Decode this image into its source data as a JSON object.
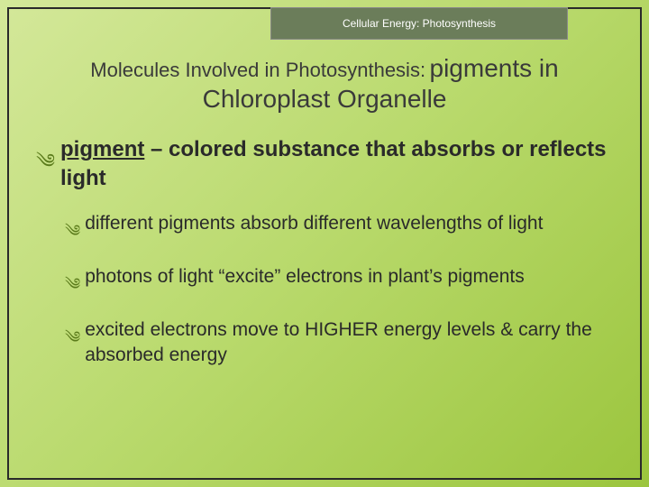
{
  "header": {
    "text": "Cellular Energy: Photosynthesis"
  },
  "title": {
    "prefix": "Molecules Involved in Photosynthesis:",
    "emphasis": "pigments in",
    "line2": "Chloroplast Organelle"
  },
  "bullets": {
    "main": {
      "term": "pigment",
      "rest": " – colored substance that absorbs or reflects light"
    },
    "sub1": "different pigments absorb different wavelengths of light",
    "sub2": "photons of light “excite” electrons in plant’s pigments",
    "sub3": "excited electrons move to HIGHER energy levels & carry the absorbed energy"
  },
  "colors": {
    "accent": "#5a7a1a",
    "text": "#2a2a2a",
    "header_bg": "#6b7d5a"
  }
}
